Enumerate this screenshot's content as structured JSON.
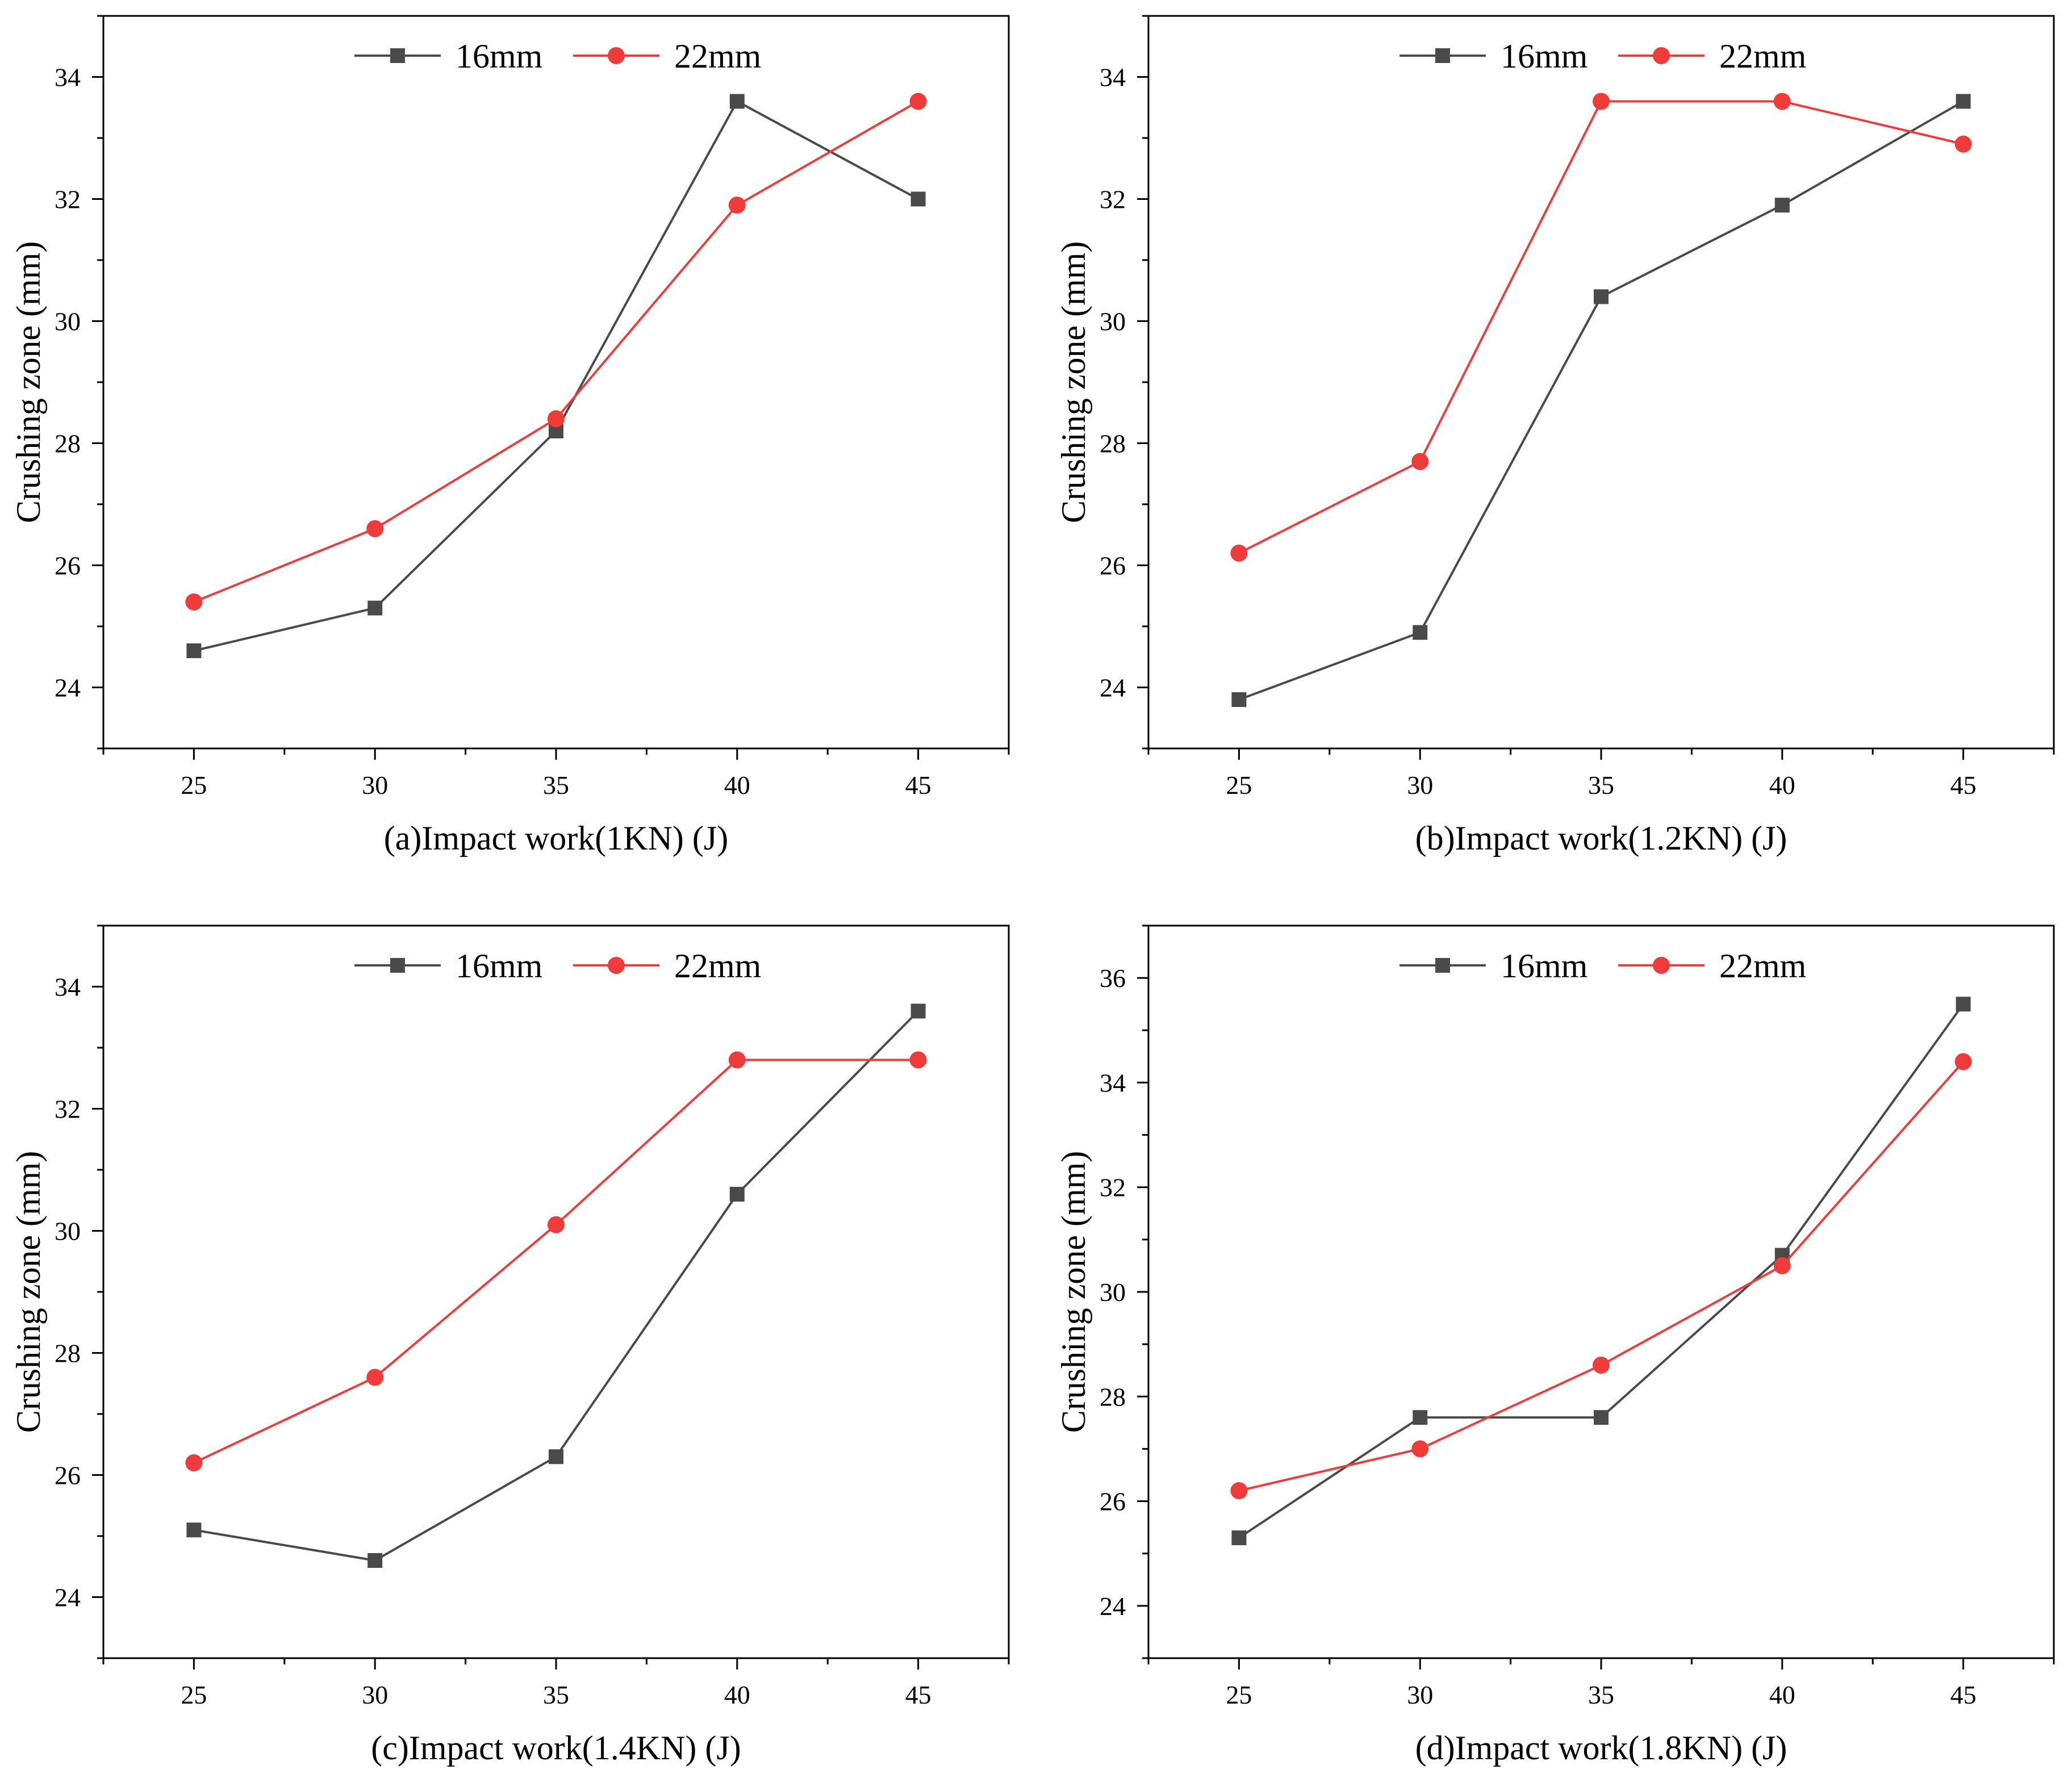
{
  "chart_data": [
    {
      "id": "a",
      "type": "line",
      "xlabel": "(a)Impact work(1KN) (J)",
      "ylabel": "Crushing zone (mm)",
      "x": [
        25,
        30,
        35,
        40,
        45
      ],
      "xticks": [
        "25",
        "30",
        "35",
        "40",
        "45"
      ],
      "xlim": [
        22.5,
        47.5
      ],
      "ylim": [
        23,
        35
      ],
      "yticks": [
        24,
        26,
        28,
        30,
        32,
        34
      ],
      "legend": "top-center",
      "series": [
        {
          "name": "16mm",
          "color": "#4a4a4a",
          "marker": "square",
          "values": [
            24.6,
            25.3,
            28.2,
            33.6,
            32.0
          ]
        },
        {
          "name": "22mm",
          "color": "#f03b3b",
          "marker": "circle",
          "values": [
            25.4,
            26.6,
            28.4,
            31.9,
            33.6
          ]
        }
      ]
    },
    {
      "id": "b",
      "type": "line",
      "xlabel": "(b)Impact work(1.2KN) (J)",
      "ylabel": "Crushing zone (mm)",
      "x": [
        25,
        30,
        35,
        40,
        45
      ],
      "xticks": [
        "25",
        "30",
        "35",
        "40",
        "45"
      ],
      "xlim": [
        22.5,
        47.5
      ],
      "ylim": [
        23,
        35
      ],
      "yticks": [
        24,
        26,
        28,
        30,
        32,
        34
      ],
      "legend": "top-center",
      "series": [
        {
          "name": "16mm",
          "color": "#4a4a4a",
          "marker": "square",
          "values": [
            23.8,
            24.9,
            30.4,
            31.9,
            33.6
          ]
        },
        {
          "name": "22mm",
          "color": "#f03b3b",
          "marker": "circle",
          "values": [
            26.2,
            27.7,
            33.6,
            33.6,
            32.9
          ]
        }
      ]
    },
    {
      "id": "c",
      "type": "line",
      "xlabel": "(c)Impact work(1.4KN) (J)",
      "ylabel": "Crushing zone (mm)",
      "x": [
        25,
        30,
        35,
        40,
        45
      ],
      "xticks": [
        "25",
        "30",
        "35",
        "40",
        "45"
      ],
      "xlim": [
        22.5,
        47.5
      ],
      "ylim": [
        23,
        35
      ],
      "yticks": [
        24,
        26,
        28,
        30,
        32,
        34
      ],
      "legend": "top-center",
      "series": [
        {
          "name": "16mm",
          "color": "#4a4a4a",
          "marker": "square",
          "values": [
            25.1,
            24.6,
            26.3,
            30.6,
            33.6
          ]
        },
        {
          "name": "22mm",
          "color": "#f03b3b",
          "marker": "circle",
          "values": [
            26.2,
            27.6,
            30.1,
            32.8,
            32.8
          ]
        }
      ]
    },
    {
      "id": "d",
      "type": "line",
      "xlabel": "(d)Impact work(1.8KN) (J)",
      "ylabel": "Crushing zone (mm)",
      "x": [
        25,
        30,
        35,
        40,
        45
      ],
      "xticks": [
        "25",
        "30",
        "35",
        "40",
        "45"
      ],
      "xlim": [
        22.5,
        47.5
      ],
      "ylim": [
        23,
        37
      ],
      "yticks": [
        24,
        26,
        28,
        30,
        32,
        34,
        36
      ],
      "legend": "top-center",
      "series": [
        {
          "name": "16mm",
          "color": "#4a4a4a",
          "marker": "square",
          "values": [
            25.3,
            27.6,
            27.6,
            30.7,
            35.5
          ]
        },
        {
          "name": "22mm",
          "color": "#f03b3b",
          "marker": "circle",
          "values": [
            26.2,
            27.0,
            28.6,
            30.5,
            34.4
          ]
        }
      ]
    }
  ]
}
